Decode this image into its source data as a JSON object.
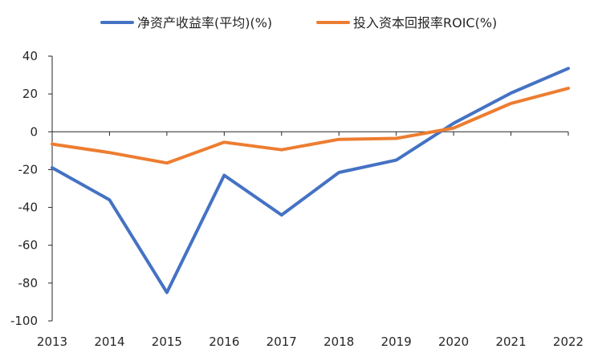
{
  "chart_data": {
    "type": "line",
    "categories": [
      "2013",
      "2014",
      "2015",
      "2016",
      "2017",
      "2018",
      "2019",
      "2020",
      "2021",
      "2022"
    ],
    "series": [
      {
        "name": "净资产收益率(平均)(%)",
        "color": "#4472C4",
        "values": [
          -19,
          -36,
          -85,
          -23,
          -44,
          -21.5,
          -15,
          4.5,
          20.5,
          33.5
        ]
      },
      {
        "name": "投入资本回报率ROIC(%)",
        "color": "#ED7D31",
        "values": [
          -6.5,
          -11,
          -16.5,
          -5.5,
          -9.5,
          -4,
          -3.5,
          2,
          15,
          23
        ]
      }
    ],
    "ylim": [
      -100,
      40
    ],
    "yticks": [
      "40",
      "20",
      "0",
      "-20",
      "-40",
      "-60",
      "-80",
      "-100"
    ],
    "grid": false,
    "legend_position": "top"
  }
}
